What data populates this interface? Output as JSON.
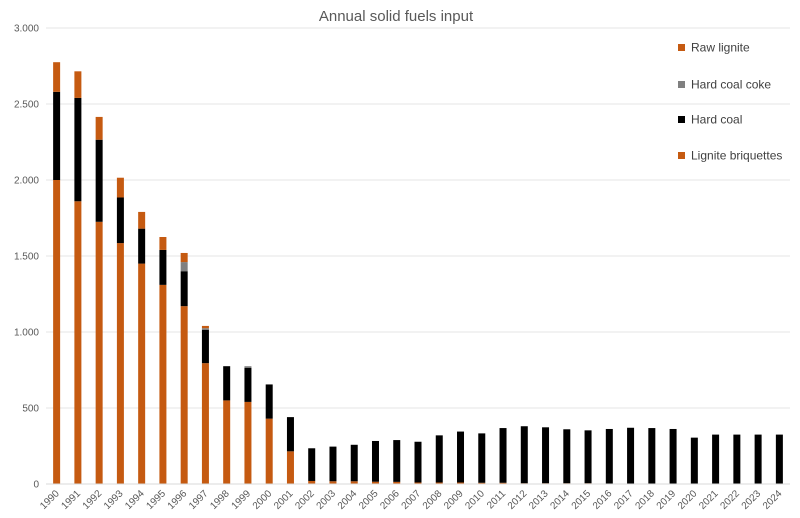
{
  "chart_data": {
    "type": "bar",
    "stacked": true,
    "title": "Annual solid fuels input",
    "xlabel": "",
    "ylabel": "",
    "ylim": [
      0,
      3000
    ],
    "yticks": [
      0,
      500,
      1000,
      1500,
      2000,
      2500,
      3000
    ],
    "ytick_labels": [
      "0",
      "500",
      "1.000",
      "1.500",
      "2.000",
      "2.500",
      "3.000"
    ],
    "grid": true,
    "legend_position": "top-right",
    "categories": [
      "1990",
      "1991",
      "1992",
      "1993",
      "1994",
      "1995",
      "1996",
      "1997",
      "1998",
      "1999",
      "2000",
      "2001",
      "2002",
      "2003",
      "2004",
      "2005",
      "2006",
      "2007",
      "2008",
      "2009",
      "2010",
      "2011",
      "2012",
      "2013",
      "2014",
      "2015",
      "2016",
      "2017",
      "2018",
      "2019",
      "2020",
      "2021",
      "2022",
      "2023",
      "2024"
    ],
    "series": [
      {
        "name": "Lignite briquettes",
        "color": "#c55a11",
        "values": [
          2000,
          1860,
          1725,
          1585,
          1450,
          1310,
          1170,
          795,
          550,
          540,
          430,
          215,
          20,
          18,
          18,
          15,
          14,
          10,
          10,
          10,
          8,
          8,
          5,
          5,
          5,
          5,
          0,
          0,
          0,
          0,
          0,
          0,
          0,
          0,
          0
        ]
      },
      {
        "name": "Hard coal",
        "color": "#000000",
        "values": [
          580,
          680,
          540,
          300,
          230,
          230,
          230,
          220,
          225,
          225,
          225,
          225,
          215,
          228,
          240,
          268,
          275,
          268,
          310,
          335,
          325,
          360,
          375,
          368,
          355,
          348,
          362,
          370,
          368,
          362,
          305,
          325,
          325,
          325,
          325
        ]
      },
      {
        "name": "Hard coal coke",
        "color": "#808080",
        "values": [
          0,
          0,
          0,
          0,
          0,
          0,
          60,
          10,
          0,
          10,
          0,
          0,
          0,
          0,
          0,
          0,
          0,
          0,
          0,
          0,
          0,
          0,
          0,
          0,
          0,
          0,
          0,
          0,
          0,
          0,
          0,
          0,
          0,
          0,
          0
        ]
      },
      {
        "name": "Raw lignite",
        "color": "#c55a11",
        "values": [
          195,
          175,
          150,
          130,
          110,
          85,
          60,
          15,
          0,
          0,
          0,
          0,
          0,
          0,
          0,
          0,
          0,
          0,
          0,
          0,
          0,
          0,
          0,
          0,
          0,
          0,
          0,
          0,
          0,
          0,
          0,
          0,
          0,
          0,
          0
        ]
      }
    ],
    "legend_order": [
      "Raw lignite",
      "Hard coal coke",
      "Hard coal",
      "Lignite briquettes"
    ]
  }
}
